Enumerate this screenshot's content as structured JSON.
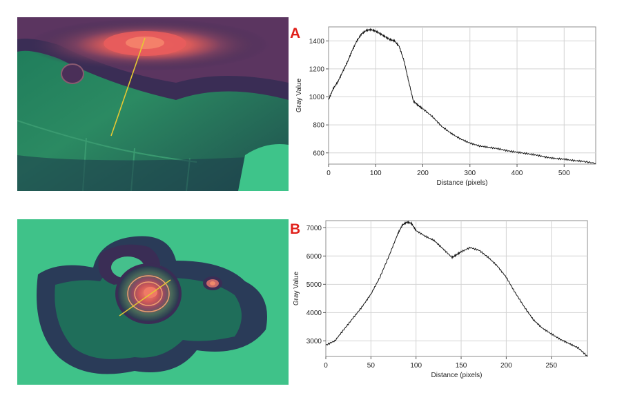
{
  "panels": [
    {
      "label": "A",
      "image": "intensity-heatmap-with-profile-line"
    },
    {
      "label": "B",
      "image": "intensity-heatmap-with-profile-line"
    }
  ],
  "colors": {
    "panel_label": "#e0201a",
    "profile_line": "#e6c832",
    "plot_line": "#111111",
    "grid": "#d3d3d3"
  },
  "chart_data": [
    {
      "type": "line",
      "panel": "A",
      "title": "",
      "xlabel": "Distance (pixels)",
      "ylabel": "Gray Value",
      "xlim": [
        0,
        567
      ],
      "ylim": [
        520,
        1500
      ],
      "xticks": [
        0,
        100,
        200,
        300,
        400,
        500
      ],
      "yticks": [
        600,
        800,
        1000,
        1200,
        1400
      ],
      "grid": true,
      "series": [
        {
          "x": [
            0,
            10,
            20,
            30,
            40,
            50,
            60,
            70,
            80,
            90,
            100,
            110,
            120,
            130,
            140,
            150,
            160,
            170,
            180,
            190,
            200,
            220,
            240,
            260,
            280,
            300,
            320,
            340,
            360,
            380,
            400,
            420,
            440,
            460,
            480,
            500,
            520,
            540,
            567
          ],
          "y": [
            980,
            1060,
            1110,
            1180,
            1250,
            1330,
            1400,
            1450,
            1475,
            1480,
            1470,
            1450,
            1430,
            1410,
            1400,
            1360,
            1260,
            1110,
            970,
            940,
            915,
            860,
            790,
            740,
            700,
            670,
            650,
            640,
            630,
            615,
            605,
            595,
            585,
            570,
            560,
            555,
            545,
            540,
            525
          ]
        }
      ]
    },
    {
      "type": "line",
      "panel": "B",
      "title": "",
      "xlabel": "Distance (pixels)",
      "ylabel": "Gray Value",
      "xlim": [
        0,
        290
      ],
      "ylim": [
        2450,
        7250
      ],
      "xticks": [
        0,
        50,
        100,
        150,
        200,
        250
      ],
      "yticks": [
        3000,
        4000,
        5000,
        6000,
        7000
      ],
      "grid": true,
      "series": [
        {
          "x": [
            0,
            10,
            20,
            30,
            40,
            50,
            60,
            70,
            80,
            85,
            90,
            95,
            100,
            110,
            120,
            130,
            140,
            145,
            150,
            160,
            170,
            180,
            190,
            200,
            210,
            220,
            230,
            240,
            250,
            260,
            270,
            280,
            290
          ],
          "y": [
            2850,
            3000,
            3400,
            3800,
            4200,
            4650,
            5250,
            6000,
            6800,
            7100,
            7200,
            7150,
            6900,
            6700,
            6550,
            6250,
            5950,
            6050,
            6150,
            6300,
            6200,
            5950,
            5650,
            5250,
            4700,
            4200,
            3750,
            3450,
            3250,
            3050,
            2900,
            2750,
            2450
          ]
        }
      ]
    }
  ]
}
